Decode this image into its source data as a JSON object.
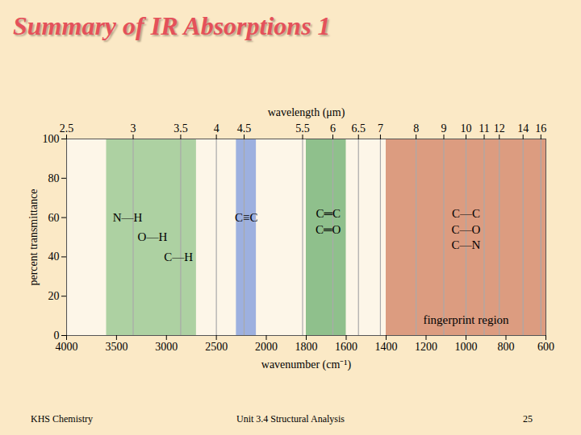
{
  "slide": {
    "title": "Summary of IR Absorptions 1",
    "footer": [
      "KHS Chemistry",
      "Unit 3.4 Structural Analysis",
      "25"
    ]
  },
  "chart_data": {
    "type": "region",
    "x2label": "wavelength (μm)",
    "xlabel": "wavenumber (cm⁻¹)",
    "ylabel": "percent transmittance",
    "xlim": [
      4000,
      600
    ],
    "xticks": [
      4000,
      3500,
      3000,
      2500,
      2000,
      1800,
      1600,
      1400,
      1200,
      1000,
      800,
      600
    ],
    "x2ticks": [
      2.5,
      3,
      3.5,
      4,
      4.5,
      5.5,
      6,
      6.5,
      7,
      8,
      9,
      10,
      11,
      12,
      14,
      16
    ],
    "ylim": [
      0,
      100
    ],
    "yticks": [
      0,
      20,
      40,
      60,
      80,
      100
    ],
    "grid": true,
    "regions": [
      {
        "x1": 3600,
        "x2": 2700,
        "color": "#add1a2"
      },
      {
        "x1": 2300,
        "x2": 2100,
        "color": "#9db0df"
      },
      {
        "x1": 1800,
        "x2": 1600,
        "color": "#8fc08c"
      },
      {
        "x1": 1400,
        "x2": 600,
        "color": "#dc9c80"
      }
    ],
    "annotations": [
      {
        "text": "N—H",
        "x": 3390,
        "y": 60
      },
      {
        "text": "O—H",
        "x": 3140,
        "y": 50
      },
      {
        "text": "C—H",
        "x": 2880,
        "y": 40
      },
      {
        "text": "C≡C",
        "x": 2200,
        "y": 60
      },
      {
        "text": "C═C",
        "x": 1690,
        "y": 62
      },
      {
        "text": "C═O",
        "x": 1690,
        "y": 54
      },
      {
        "text": "C—C",
        "x": 1000,
        "y": 62
      },
      {
        "text": "C—O",
        "x": 1000,
        "y": 54
      },
      {
        "text": "C—N",
        "x": 1000,
        "y": 46
      },
      {
        "text": "fingerprint region",
        "x": 1000,
        "y": 8
      }
    ]
  }
}
